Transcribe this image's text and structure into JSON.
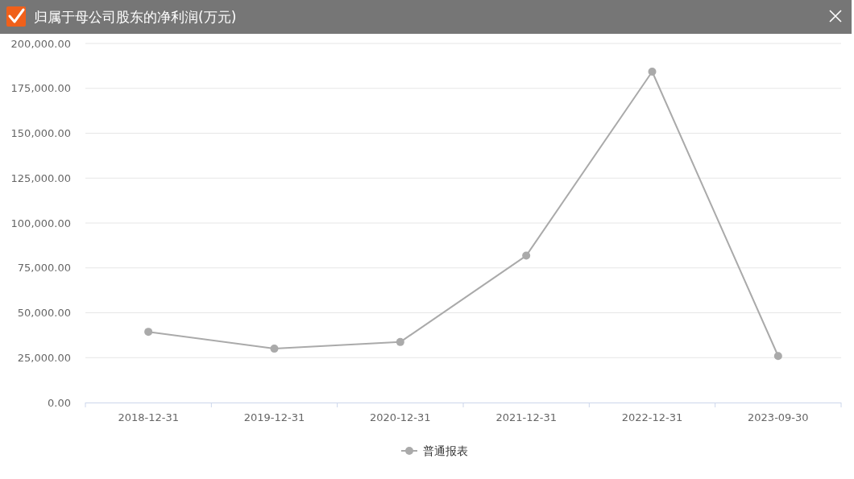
{
  "chart_data": {
    "type": "line",
    "title": "归属于母公司股东的净利润(万元)",
    "categories": [
      "2018-12-31",
      "2019-12-31",
      "2020-12-31",
      "2021-12-31",
      "2022-12-31",
      "2023-09-30"
    ],
    "series": [
      {
        "name": "普通报表",
        "color": "#aaaaaa",
        "values": [
          39400,
          30000,
          33700,
          81800,
          184300,
          25900
        ]
      }
    ],
    "ylim": [
      0,
      200000
    ],
    "yticks": [
      {
        "value": 0,
        "label": "0.00"
      },
      {
        "value": 25000,
        "label": "25,000.00"
      },
      {
        "value": 50000,
        "label": "50,000.00"
      },
      {
        "value": 75000,
        "label": "75,000.00"
      },
      {
        "value": 100000,
        "label": "100,000.00"
      },
      {
        "value": 125000,
        "label": "125,000.00"
      },
      {
        "value": 150000,
        "label": "150,000.00"
      },
      {
        "value": 175000,
        "label": "175,000.00"
      },
      {
        "value": 200000,
        "label": "200,000.00"
      }
    ],
    "grid": "y",
    "legend": "bottom",
    "marker": "circle"
  }
}
